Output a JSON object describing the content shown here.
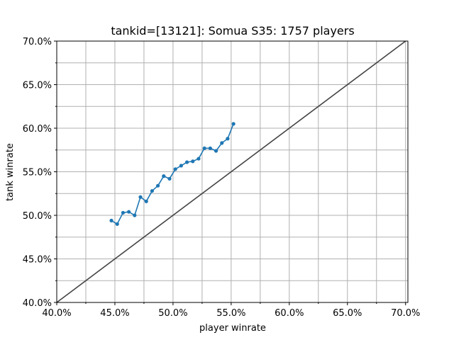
{
  "chart_data": {
    "type": "line",
    "title": "tankid=[13121]: Somua S35: 1757 players",
    "xlabel": "player winrate",
    "ylabel": "tank winrate",
    "xlim": [
      40.0,
      70.2
    ],
    "ylim": [
      40.0,
      70.0
    ],
    "x_ticks": [
      40,
      45,
      50,
      55,
      60,
      65,
      70
    ],
    "y_ticks": [
      40,
      45,
      50,
      55,
      60,
      65,
      70
    ],
    "x_tick_labels": [
      "40.0%",
      "45.0%",
      "50.0%",
      "55.0%",
      "60.0%",
      "65.0%",
      "70.0%"
    ],
    "y_tick_labels": [
      "40.0%",
      "45.0%",
      "50.0%",
      "55.0%",
      "60.0%",
      "65.0%",
      "70.0%"
    ],
    "grid": true,
    "colors": {
      "series": "#1f77b4",
      "reference": "#444444",
      "grid": "#b0b0b0"
    },
    "reference_line": {
      "x": [
        40.0,
        70.0
      ],
      "y": [
        40.0,
        70.0
      ]
    },
    "series": [
      {
        "x": [
          44.7,
          45.2,
          45.7,
          46.2,
          46.7,
          47.2,
          47.7,
          48.2,
          48.7,
          49.2,
          49.7,
          50.2,
          50.7,
          51.2,
          51.7,
          52.2,
          52.7,
          53.2,
          53.7,
          54.2,
          54.7,
          55.2
        ],
        "y": [
          49.4,
          49.0,
          50.3,
          50.4,
          50.0,
          52.1,
          51.6,
          52.8,
          53.4,
          54.5,
          54.2,
          55.3,
          55.7,
          56.1,
          56.2,
          56.5,
          57.7,
          57.7,
          57.4,
          58.3,
          58.8,
          60.5
        ]
      }
    ]
  }
}
